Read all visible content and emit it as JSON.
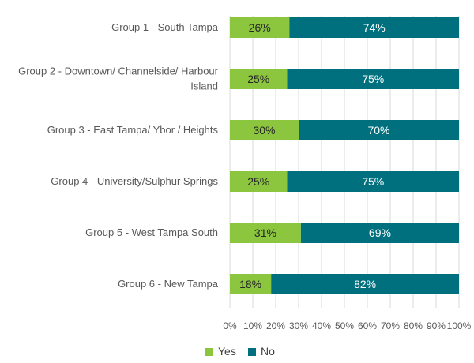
{
  "chart_data": {
    "type": "bar",
    "orientation": "horizontal",
    "stacked": "percent",
    "categories": [
      [
        "Group 1 - South Tampa"
      ],
      [
        "Group 2 - Downtown/ Channelside/ Harbour",
        "Island"
      ],
      [
        "Group 3 - East Tampa/ Ybor / Heights"
      ],
      [
        "Group 4 - University/Sulphur Springs"
      ],
      [
        "Group 5 - West Tampa South"
      ],
      [
        "Group 6 - New Tampa"
      ]
    ],
    "series": [
      {
        "name": "Yes",
        "color": "#8cc63f",
        "label_color": "#262626",
        "values": [
          26,
          25,
          30,
          25,
          31,
          18
        ],
        "labels": [
          "26%",
          "25%",
          "30%",
          "25%",
          "31%",
          "18%"
        ]
      },
      {
        "name": "No",
        "color": "#00707f",
        "label_color": "#ffffff",
        "values": [
          74,
          75,
          70,
          75,
          69,
          82
        ],
        "labels": [
          "74%",
          "75%",
          "70%",
          "75%",
          "69%",
          "82%"
        ]
      }
    ],
    "xticks": [
      "0%",
      "10%",
      "20%",
      "30%",
      "40%",
      "50%",
      "60%",
      "70%",
      "80%",
      "90%",
      "100%"
    ],
    "xlim": [
      0,
      100
    ],
    "gridlines": true,
    "legend_position": "bottom"
  }
}
